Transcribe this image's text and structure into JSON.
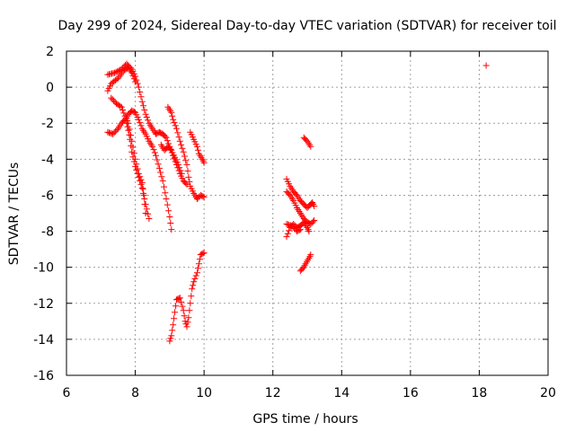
{
  "chart_data": {
    "type": "scatter",
    "title": "Day 299 of 2024, Sidereal Day-to-day VTEC variation (SDTVAR) for receiver toil",
    "xlabel": "GPS time / hours",
    "ylabel": "SDTVAR / TECUs",
    "xlim": [
      6,
      20
    ],
    "ylim": [
      -16,
      2
    ],
    "xticks": [
      6,
      8,
      10,
      12,
      14,
      16,
      18,
      20
    ],
    "yticks": [
      2,
      0,
      -2,
      -4,
      -6,
      -8,
      -10,
      -12,
      -14,
      -16
    ],
    "grid": true,
    "marker": "plus",
    "color": "#ff0000",
    "series": [
      {
        "polylines": [
          [
            [
              7.2,
              0.7
            ],
            [
              7.4,
              0.8
            ],
            [
              7.6,
              1.0
            ],
            [
              7.75,
              1.3
            ],
            [
              7.9,
              1.0
            ],
            [
              8.0,
              0.6
            ],
            [
              8.1,
              0.0
            ],
            [
              8.2,
              -0.8
            ],
            [
              8.3,
              -1.5
            ],
            [
              8.4,
              -2.0
            ],
            [
              8.5,
              -2.3
            ],
            [
              8.6,
              -2.6
            ],
            [
              8.7,
              -2.5
            ],
            [
              8.8,
              -2.6
            ],
            [
              8.9,
              -2.8
            ],
            [
              9.0,
              -3.3
            ],
            [
              9.1,
              -3.8
            ],
            [
              9.2,
              -4.3
            ],
            [
              9.3,
              -4.8
            ],
            [
              9.4,
              -5.2
            ],
            [
              9.5,
              -5.4
            ]
          ],
          [
            [
              7.3,
              -0.6
            ],
            [
              7.45,
              -0.9
            ],
            [
              7.6,
              -1.1
            ],
            [
              7.7,
              -1.6
            ],
            [
              7.8,
              -2.0
            ],
            [
              7.9,
              -3.0
            ],
            [
              8.0,
              -4.0
            ],
            [
              8.1,
              -4.8
            ],
            [
              8.2,
              -5.3
            ],
            [
              8.25,
              -6.0
            ],
            [
              8.3,
              -7.0
            ]
          ],
          [
            [
              7.2,
              -0.2
            ],
            [
              7.3,
              0.2
            ],
            [
              7.5,
              0.5
            ],
            [
              7.65,
              0.9
            ],
            [
              7.8,
              1.1
            ],
            [
              7.9,
              0.8
            ],
            [
              8.0,
              0.3
            ]
          ],
          [
            [
              7.2,
              -2.5
            ],
            [
              7.35,
              -2.6
            ],
            [
              7.5,
              -2.3
            ],
            [
              7.6,
              -2.0
            ],
            [
              7.7,
              -1.8
            ],
            [
              7.8,
              -1.5
            ],
            [
              7.9,
              -1.3
            ],
            [
              8.0,
              -1.4
            ],
            [
              8.1,
              -1.8
            ],
            [
              8.2,
              -2.3
            ],
            [
              8.3,
              -2.6
            ],
            [
              8.4,
              -3.0
            ],
            [
              8.5,
              -3.3
            ],
            [
              8.6,
              -3.8
            ],
            [
              8.7,
              -4.5
            ],
            [
              8.8,
              -5.2
            ],
            [
              8.9,
              -6.2
            ],
            [
              9.0,
              -7.2
            ],
            [
              9.05,
              -7.9
            ]
          ],
          [
            [
              7.75,
              -2.0
            ],
            [
              7.8,
              -2.4
            ],
            [
              7.85,
              -2.9
            ],
            [
              7.9,
              -3.6
            ],
            [
              8.0,
              -4.4
            ],
            [
              8.1,
              -5.0
            ],
            [
              8.2,
              -5.6
            ],
            [
              8.3,
              -6.5
            ],
            [
              8.4,
              -7.3
            ]
          ],
          [
            [
              8.75,
              -3.2
            ],
            [
              8.85,
              -3.5
            ],
            [
              8.95,
              -3.3
            ],
            [
              9.05,
              -3.5
            ],
            [
              9.15,
              -3.9
            ],
            [
              9.25,
              -4.3
            ],
            [
              9.35,
              -4.8
            ]
          ],
          [
            [
              8.95,
              -1.1
            ],
            [
              9.05,
              -1.4
            ],
            [
              9.1,
              -1.8
            ],
            [
              9.2,
              -2.3
            ],
            [
              9.3,
              -3.0
            ],
            [
              9.4,
              -3.6
            ],
            [
              9.5,
              -4.3
            ],
            [
              9.55,
              -5.0
            ],
            [
              9.6,
              -5.5
            ],
            [
              9.7,
              -5.9
            ],
            [
              9.8,
              -6.2
            ],
            [
              9.9,
              -6.0
            ],
            [
              10.0,
              -6.1
            ]
          ],
          [
            [
              9.6,
              -2.5
            ],
            [
              9.7,
              -2.9
            ],
            [
              9.8,
              -3.3
            ],
            [
              9.85,
              -3.7
            ],
            [
              9.95,
              -4.0
            ],
            [
              10.0,
              -4.2
            ]
          ],
          [
            [
              9.0,
              -14.1
            ],
            [
              9.05,
              -13.8
            ],
            [
              9.1,
              -13.2
            ],
            [
              9.15,
              -12.5
            ],
            [
              9.2,
              -11.8
            ],
            [
              9.3,
              -11.7
            ],
            [
              9.4,
              -12.4
            ],
            [
              9.45,
              -13.0
            ],
            [
              9.5,
              -13.3
            ],
            [
              9.55,
              -12.8
            ],
            [
              9.6,
              -12.0
            ],
            [
              9.65,
              -11.2
            ],
            [
              9.7,
              -10.8
            ],
            [
              9.8,
              -10.3
            ],
            [
              9.85,
              -9.8
            ],
            [
              9.9,
              -9.3
            ],
            [
              10.0,
              -9.2
            ]
          ],
          [
            [
              12.4,
              -5.1
            ],
            [
              12.5,
              -5.5
            ],
            [
              12.6,
              -5.8
            ],
            [
              12.7,
              -6.0
            ],
            [
              12.8,
              -6.3
            ],
            [
              12.9,
              -6.5
            ],
            [
              13.0,
              -6.7
            ],
            [
              13.1,
              -6.5
            ],
            [
              13.15,
              -6.4
            ],
            [
              13.2,
              -6.6
            ]
          ],
          [
            [
              12.4,
              -5.8
            ],
            [
              12.5,
              -6.0
            ],
            [
              12.6,
              -6.3
            ],
            [
              12.7,
              -6.7
            ],
            [
              12.8,
              -7.0
            ],
            [
              12.9,
              -7.3
            ],
            [
              13.0,
              -7.5
            ],
            [
              13.1,
              -7.6
            ],
            [
              13.2,
              -7.4
            ]
          ],
          [
            [
              12.4,
              -8.3
            ],
            [
              12.5,
              -7.8
            ],
            [
              12.6,
              -7.6
            ],
            [
              12.7,
              -7.8
            ],
            [
              12.8,
              -7.7
            ],
            [
              12.9,
              -7.5
            ],
            [
              13.0,
              -7.8
            ],
            [
              13.05,
              -8.0
            ]
          ],
          [
            [
              12.4,
              -7.6
            ],
            [
              12.55,
              -7.7
            ],
            [
              12.7,
              -8.0
            ],
            [
              12.8,
              -7.9
            ]
          ],
          [
            [
              12.8,
              -10.2
            ],
            [
              12.9,
              -10.0
            ],
            [
              12.95,
              -9.8
            ],
            [
              13.05,
              -9.5
            ],
            [
              13.1,
              -9.3
            ]
          ],
          [
            [
              12.9,
              -2.8
            ],
            [
              13.0,
              -3.0
            ],
            [
              13.1,
              -3.3
            ]
          ],
          [
            [
              18.2,
              1.2
            ]
          ]
        ]
      }
    ]
  }
}
